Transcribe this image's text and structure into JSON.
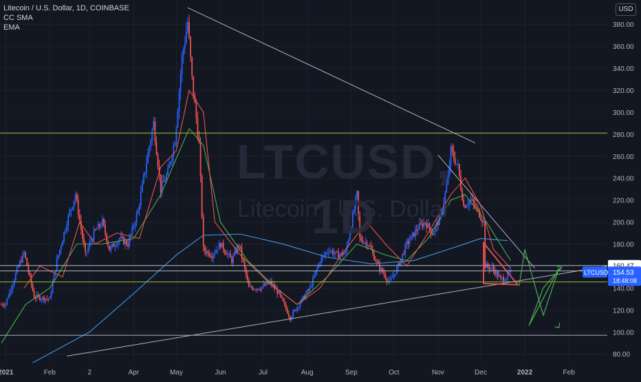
{
  "legend": {
    "title": "Litecoin / U.S. Dollar, 1D, COINBASE",
    "indicator1": "CC SMA",
    "indicator2": "EMA"
  },
  "currency_badge": "USD",
  "watermark": {
    "symbol": "LTCUSD, 1D",
    "name": "Litecoin / U.S. Dollar"
  },
  "price_tags": {
    "level_label": "160.47",
    "current_symbol": "LTCUSD",
    "current_price": "154.53",
    "countdown": "18:48:08"
  },
  "colors": {
    "background": "#131722",
    "up": "#2962ff",
    "down": "#ef5350",
    "sma": "#ef5350",
    "ema": "#4caf50",
    "ma_long": "#3d8fd6",
    "horizontal_green": "#a0c030",
    "horizontal_white": "#b2b5be",
    "current_price_tag": "#2962ff",
    "hand_drawn_green": "#4caf50"
  },
  "chart_data": {
    "type": "candlestick",
    "y_axis": {
      "ticks": [
        80,
        100,
        120,
        140,
        160,
        180,
        200,
        220,
        240,
        260,
        280,
        300,
        320,
        340,
        360,
        380
      ],
      "tick_labels": [
        "80.00",
        "100.00",
        "120.00",
        "140.00",
        "160.00",
        "180.00",
        "200.00",
        "220.00",
        "240.00",
        "260.00",
        "280.00",
        "300.00",
        "320.00",
        "340.00",
        "360.00",
        "380.00"
      ],
      "ylim": [
        72,
        402
      ]
    },
    "x_axis": {
      "labels": [
        {
          "date": "2021-01-01",
          "label": "2021"
        },
        {
          "date": "2021-02-01",
          "label": "Feb"
        },
        {
          "date": "2021-03-01",
          "label": "2"
        },
        {
          "date": "2021-04-01",
          "label": "Apr"
        },
        {
          "date": "2021-05-01",
          "label": "May"
        },
        {
          "date": "2021-06-01",
          "label": "Jun"
        },
        {
          "date": "2021-07-01",
          "label": "Jul"
        },
        {
          "date": "2021-08-01",
          "label": "Aug"
        },
        {
          "date": "2021-09-01",
          "label": "Sep"
        },
        {
          "date": "2021-10-01",
          "label": "Oct"
        },
        {
          "date": "2021-11-01",
          "label": "Nov"
        },
        {
          "date": "2021-12-01",
          "label": "Dec"
        },
        {
          "date": "2022-01-01",
          "label": "2022"
        },
        {
          "date": "2022-02-01",
          "label": "Feb"
        }
      ],
      "range": [
        "2020-12-28",
        "2022-02-28"
      ]
    },
    "price_path": [
      [
        "2020-12-29",
        125
      ],
      [
        "2021-01-01",
        126
      ],
      [
        "2021-01-10",
        160
      ],
      [
        "2021-01-14",
        172
      ],
      [
        "2021-01-21",
        132
      ],
      [
        "2021-02-01",
        130
      ],
      [
        "2021-02-06",
        165
      ],
      [
        "2021-02-13",
        200
      ],
      [
        "2021-02-19",
        225
      ],
      [
        "2021-02-26",
        170
      ],
      [
        "2021-03-04",
        190
      ],
      [
        "2021-03-10",
        200
      ],
      [
        "2021-03-15",
        175
      ],
      [
        "2021-03-22",
        185
      ],
      [
        "2021-03-28",
        180
      ],
      [
        "2021-04-04",
        210
      ],
      [
        "2021-04-10",
        255
      ],
      [
        "2021-04-15",
        290
      ],
      [
        "2021-04-20",
        230
      ],
      [
        "2021-04-25",
        245
      ],
      [
        "2021-04-30",
        275
      ],
      [
        "2021-05-05",
        350
      ],
      [
        "2021-05-09",
        382
      ],
      [
        "2021-05-12",
        330
      ],
      [
        "2021-05-17",
        270
      ],
      [
        "2021-05-20",
        175
      ],
      [
        "2021-05-26",
        170
      ],
      [
        "2021-06-01",
        180
      ],
      [
        "2021-06-09",
        165
      ],
      [
        "2021-06-14",
        180
      ],
      [
        "2021-06-21",
        140
      ],
      [
        "2021-06-29",
        140
      ],
      [
        "2021-07-06",
        145
      ],
      [
        "2021-07-12",
        135
      ],
      [
        "2021-07-20",
        113
      ],
      [
        "2021-07-26",
        125
      ],
      [
        "2021-08-03",
        140
      ],
      [
        "2021-08-10",
        165
      ],
      [
        "2021-08-16",
        175
      ],
      [
        "2021-08-22",
        170
      ],
      [
        "2021-08-28",
        172
      ],
      [
        "2021-09-05",
        225
      ],
      [
        "2021-09-07",
        185
      ],
      [
        "2021-09-13",
        180
      ],
      [
        "2021-09-20",
        160
      ],
      [
        "2021-09-28",
        145
      ],
      [
        "2021-10-04",
        160
      ],
      [
        "2021-10-10",
        180
      ],
      [
        "2021-10-18",
        195
      ],
      [
        "2021-10-23",
        200
      ],
      [
        "2021-10-28",
        190
      ],
      [
        "2021-11-03",
        205
      ],
      [
        "2021-11-08",
        240
      ],
      [
        "2021-11-10",
        265
      ],
      [
        "2021-11-15",
        250
      ],
      [
        "2021-11-19",
        215
      ],
      [
        "2021-11-24",
        220
      ],
      [
        "2021-11-29",
        210
      ],
      [
        "2021-12-03",
        200
      ],
      [
        "2021-12-04",
        160
      ],
      [
        "2021-12-09",
        158
      ],
      [
        "2021-12-15",
        148
      ],
      [
        "2021-12-19",
        150
      ],
      [
        "2021-12-22",
        154.53
      ]
    ],
    "sma_path": [
      [
        "2021-01-14",
        140
      ],
      [
        "2021-01-25",
        160
      ],
      [
        "2021-02-10",
        150
      ],
      [
        "2021-02-22",
        200
      ],
      [
        "2021-03-05",
        180
      ],
      [
        "2021-03-20",
        190
      ],
      [
        "2021-04-05",
        185
      ],
      [
        "2021-04-20",
        250
      ],
      [
        "2021-05-01",
        265
      ],
      [
        "2021-05-10",
        320
      ],
      [
        "2021-05-20",
        300
      ],
      [
        "2021-05-28",
        200
      ],
      [
        "2021-06-15",
        170
      ],
      [
        "2021-07-05",
        145
      ],
      [
        "2021-07-25",
        125
      ],
      [
        "2021-08-10",
        140
      ],
      [
        "2021-08-25",
        170
      ],
      [
        "2021-09-12",
        200
      ],
      [
        "2021-09-25",
        180
      ],
      [
        "2021-10-10",
        160
      ],
      [
        "2021-10-25",
        190
      ],
      [
        "2021-11-10",
        225
      ],
      [
        "2021-11-20",
        240
      ],
      [
        "2021-12-01",
        215
      ],
      [
        "2021-12-10",
        175
      ],
      [
        "2021-12-22",
        158
      ]
    ],
    "ema_path": [
      [
        "2020-12-29",
        90
      ],
      [
        "2021-01-15",
        125
      ],
      [
        "2021-02-01",
        140
      ],
      [
        "2021-02-20",
        180
      ],
      [
        "2021-03-10",
        180
      ],
      [
        "2021-04-01",
        185
      ],
      [
        "2021-04-20",
        225
      ],
      [
        "2021-05-10",
        285
      ],
      [
        "2021-05-20",
        270
      ],
      [
        "2021-06-01",
        200
      ],
      [
        "2021-06-20",
        165
      ],
      [
        "2021-07-10",
        140
      ],
      [
        "2021-07-25",
        125
      ],
      [
        "2021-08-15",
        150
      ],
      [
        "2021-09-05",
        180
      ],
      [
        "2021-09-25",
        170
      ],
      [
        "2021-10-10",
        165
      ],
      [
        "2021-10-25",
        185
      ],
      [
        "2021-11-10",
        220
      ],
      [
        "2021-11-20",
        225
      ],
      [
        "2021-12-05",
        200
      ],
      [
        "2021-12-22",
        165
      ]
    ],
    "ma_long_path": [
      [
        "2021-01-20",
        72
      ],
      [
        "2021-03-01",
        100
      ],
      [
        "2021-04-01",
        135
      ],
      [
        "2021-05-01",
        170
      ],
      [
        "2021-05-20",
        188
      ],
      [
        "2021-06-15",
        189
      ],
      [
        "2021-07-15",
        180
      ],
      [
        "2021-08-15",
        168
      ],
      [
        "2021-09-15",
        162
      ],
      [
        "2021-10-15",
        165
      ],
      [
        "2021-11-15",
        178
      ],
      [
        "2021-12-01",
        185
      ],
      [
        "2021-12-20",
        183
      ]
    ],
    "horizontal_lines": [
      {
        "y": 281,
        "color": "green"
      },
      {
        "y": 160.47,
        "color": "white"
      },
      {
        "y": 155.5,
        "color": "white"
      },
      {
        "y": 145.5,
        "color": "green"
      },
      {
        "y": 97,
        "color": "white"
      }
    ],
    "trendlines": [
      {
        "from": [
          "2021-05-09",
          395
        ],
        "to": [
          "2021-11-27",
          272
        ],
        "color": "white"
      },
      {
        "from": [
          "2021-11-01",
          261
        ],
        "to": [
          "2022-01-08",
          158
        ],
        "color": "white"
      },
      {
        "from": [
          "2021-02-13",
          78
        ],
        "to": [
          "2022-02-28",
          160
        ],
        "color": "white"
      }
    ],
    "triangle": [
      [
        "2021-12-03",
        181
      ],
      [
        "2021-12-03",
        144
      ],
      [
        "2021-12-27",
        143
      ]
    ],
    "projection_path": [
      [
        "2021-12-28",
        142
      ],
      [
        "2022-01-01",
        175
      ],
      [
        "2022-01-14",
        115
      ],
      [
        "2022-01-25",
        158
      ],
      [
        "2022-01-04",
        106
      ],
      [
        "2022-01-14",
        140
      ],
      [
        "2022-01-27",
        159
      ]
    ],
    "current_price": 154.53
  }
}
